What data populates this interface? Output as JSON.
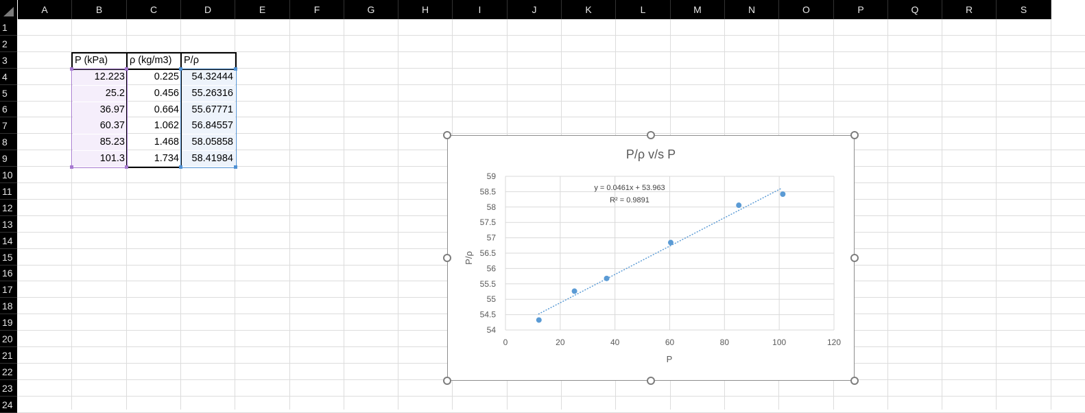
{
  "columns": [
    "A",
    "B",
    "C",
    "D",
    "E",
    "F",
    "G",
    "H",
    "I",
    "J",
    "K",
    "L",
    "M",
    "N",
    "O",
    "P",
    "Q",
    "R",
    "S"
  ],
  "rows": [
    "1",
    "2",
    "3",
    "4",
    "5",
    "6",
    "7",
    "8",
    "9",
    "10",
    "11",
    "12",
    "13",
    "14",
    "15",
    "16",
    "17",
    "18",
    "19",
    "20",
    "21",
    "22",
    "23",
    "24"
  ],
  "table": {
    "headers": [
      "P (kPa)",
      "ρ (kg/m3)",
      "P/ρ"
    ],
    "rows": [
      [
        "12.223",
        "0.225",
        "54.32444"
      ],
      [
        "25.2",
        "0.456",
        "55.26316"
      ],
      [
        "36.97",
        "0.664",
        "55.67771"
      ],
      [
        "60.37",
        "1.062",
        "56.84557"
      ],
      [
        "85.23",
        "1.468",
        "58.05858"
      ],
      [
        "101.3",
        "1.734",
        "58.41984"
      ]
    ]
  },
  "colors": {
    "header_bg": "#000000",
    "grid": "#dcdcdc",
    "range_P": "#a678d0",
    "range_ratio": "#4f91d4",
    "marker": "#5b9bd5",
    "trendline": "#5b9bd5"
  },
  "chart_data": {
    "type": "scatter",
    "title": "P/ρ v/s P",
    "xlabel": "P",
    "ylabel": "P/ρ",
    "xlim": [
      0,
      120
    ],
    "ylim": [
      54,
      59
    ],
    "xticks": [
      0,
      20,
      40,
      60,
      80,
      100,
      120
    ],
    "yticks": [
      54,
      54.5,
      55,
      55.5,
      56,
      56.5,
      57,
      57.5,
      58,
      58.5,
      59
    ],
    "grid": true,
    "points": [
      {
        "x": 12.223,
        "y": 54.32444
      },
      {
        "x": 25.2,
        "y": 55.26316
      },
      {
        "x": 36.97,
        "y": 55.67771
      },
      {
        "x": 60.37,
        "y": 56.84557
      },
      {
        "x": 85.23,
        "y": 58.05858
      },
      {
        "x": 101.3,
        "y": 58.41984
      }
    ],
    "trendline": {
      "type": "linear",
      "slope": 0.0461,
      "intercept": 53.963,
      "equation": "y = 0.0461x + 53.963",
      "r2": "R² = 0.9891"
    }
  }
}
